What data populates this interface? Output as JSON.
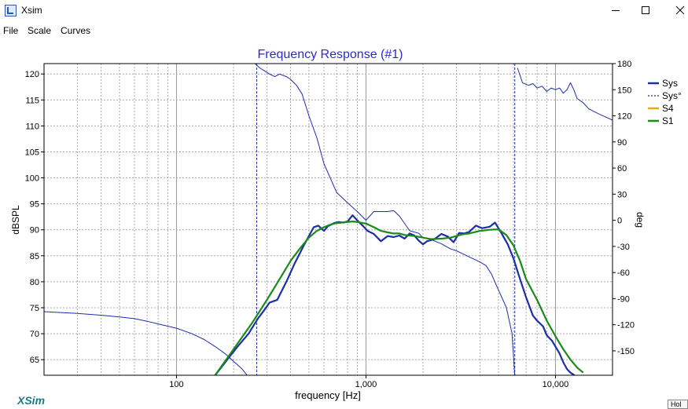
{
  "window": {
    "title": "Xsim",
    "icon": "xsim-app-icon"
  },
  "menu": {
    "items": [
      "File",
      "Scale",
      "Curves"
    ]
  },
  "brand": "XSim",
  "status_box": "Hol",
  "chart_data": {
    "type": "line",
    "title": "Frequency Response (#1)",
    "xlabel": "frequency [Hz]",
    "ylabel": "dBSPL",
    "y2label": "deg",
    "x_scale": "log",
    "xlim": [
      20,
      20000
    ],
    "ylim": [
      62,
      122
    ],
    "y2lim": [
      -178,
      180
    ],
    "x_ticks": [
      {
        "value": 100,
        "label": "100"
      },
      {
        "value": 1000,
        "label": "1,000"
      },
      {
        "value": 10000,
        "label": "10,000"
      }
    ],
    "y_ticks": [
      65,
      70,
      75,
      80,
      85,
      90,
      95,
      100,
      105,
      110,
      115,
      120
    ],
    "y2_ticks": [
      -150,
      -120,
      -90,
      -60,
      -30,
      0,
      30,
      60,
      90,
      120,
      150,
      180
    ],
    "grid": true,
    "legend": {
      "position": "right",
      "entries": [
        {
          "name": "Sys",
          "color": "#1c2ea8",
          "style": "solid"
        },
        {
          "name": "Sys°",
          "color": "#1c2ea8",
          "style": "dashed"
        },
        {
          "name": "S4",
          "color": "#e0b000",
          "style": "solid"
        },
        {
          "name": "S1",
          "color": "#1a8a1a",
          "style": "solid"
        }
      ]
    },
    "series": [
      {
        "name": "Sys",
        "color": "#1c2ea8",
        "axis": "left",
        "x": [
          160,
          190,
          210,
          240,
          270,
          290,
          310,
          340,
          380,
          420,
          470,
          530,
          560,
          600,
          630,
          680,
          720,
          760,
          800,
          850,
          900,
          960,
          1020,
          1100,
          1200,
          1300,
          1400,
          1500,
          1600,
          1700,
          1800,
          1900,
          2000,
          2100,
          2300,
          2500,
          2700,
          2900,
          3100,
          3300,
          3500,
          3800,
          4100,
          4500,
          4800,
          5200,
          5600,
          6000,
          6400,
          7000,
          7600,
          8000,
          8600,
          9000,
          9600,
          10000,
          10500,
          11000,
          11500,
          12000,
          12600
        ],
        "y": [
          62,
          65.5,
          67.5,
          70,
          73,
          74.5,
          76,
          76.5,
          80,
          83.5,
          87,
          90.5,
          90.8,
          89.8,
          90.7,
          91.3,
          91.5,
          91.4,
          91.6,
          92.8,
          91.8,
          90.8,
          89.8,
          89.2,
          87.8,
          88.8,
          88.6,
          88.9,
          88.3,
          89.3,
          88.9,
          87.9,
          87.2,
          87.8,
          88.2,
          89.2,
          88.7,
          87.6,
          89.4,
          89.3,
          89.6,
          90.8,
          90.3,
          90.6,
          91.4,
          89.3,
          87.2,
          84.5,
          81.3,
          77,
          73.5,
          72.5,
          71.4,
          69.7,
          68.6,
          67.5,
          66.2,
          64.5,
          63.2,
          62.5,
          62
        ]
      },
      {
        "name": "Sys°",
        "color": "#1c2ea8",
        "axis": "right",
        "x": [
          20,
          30,
          40,
          50,
          60,
          70,
          80,
          100,
          120,
          140,
          160,
          180,
          200,
          220,
          240,
          260,
          275,
          290,
          310,
          330,
          350,
          380,
          400,
          430,
          460,
          500,
          550,
          600,
          700,
          800,
          900,
          1000,
          1100,
          1200,
          1300,
          1400,
          1500,
          1700,
          1900,
          2000,
          2200,
          2500,
          2800,
          3000,
          3200,
          3500,
          4000,
          4300,
          4600,
          5000,
          5500,
          5900,
          6100,
          6300,
          6700,
          7200,
          7600,
          8000,
          8500,
          9000,
          9500,
          10000,
          10500,
          11000,
          11500,
          12000,
          12500,
          13000,
          14000,
          15000,
          17000,
          20000
        ],
        "y": [
          -105,
          -107,
          -109,
          -111,
          -113,
          -116,
          -119,
          -124,
          -130,
          -137,
          -145,
          -153,
          -162,
          -170,
          -180,
          180,
          175,
          172,
          168,
          165,
          168,
          165,
          162,
          155,
          145,
          120,
          95,
          65,
          32,
          20,
          10,
          0,
          10,
          10,
          10,
          11,
          5,
          -12,
          -15,
          -20,
          -22,
          -27,
          -33,
          -35,
          -38,
          -42,
          -48,
          -52,
          -62,
          -80,
          -100,
          -130,
          -178,
          175,
          158,
          155,
          157,
          152,
          154,
          148,
          152,
          150,
          152,
          146,
          150,
          158,
          150,
          140,
          135,
          128,
          122,
          115
        ]
      },
      {
        "name": "S1",
        "color": "#1a8a1a",
        "axis": "left",
        "x": [
          160,
          200,
          250,
          300,
          350,
          400,
          450,
          500,
          550,
          600,
          650,
          700,
          750,
          800,
          850,
          900,
          1000,
          1100,
          1200,
          1300,
          1400,
          1500,
          1600,
          1800,
          2000,
          2200,
          2500,
          2800,
          3000,
          3200,
          3500,
          4000,
          4500,
          5000,
          5500,
          6000,
          6500,
          7000,
          8000,
          9000,
          10000,
          11000,
          12000,
          13000,
          14000
        ],
        "y": [
          62,
          67,
          72,
          76.5,
          80.5,
          84,
          86.5,
          88.5,
          89.8,
          90.5,
          91,
          91.3,
          91.4,
          91.5,
          91.6,
          91.5,
          91.2,
          90.5,
          89.8,
          89.5,
          89.3,
          89.3,
          89,
          88.8,
          88.5,
          88.2,
          88.3,
          88.5,
          88.8,
          89.1,
          89.3,
          89.8,
          90,
          90.1,
          89,
          87,
          84,
          80.5,
          76.5,
          72.5,
          69.5,
          67,
          65,
          63.5,
          62.5
        ]
      }
    ]
  }
}
